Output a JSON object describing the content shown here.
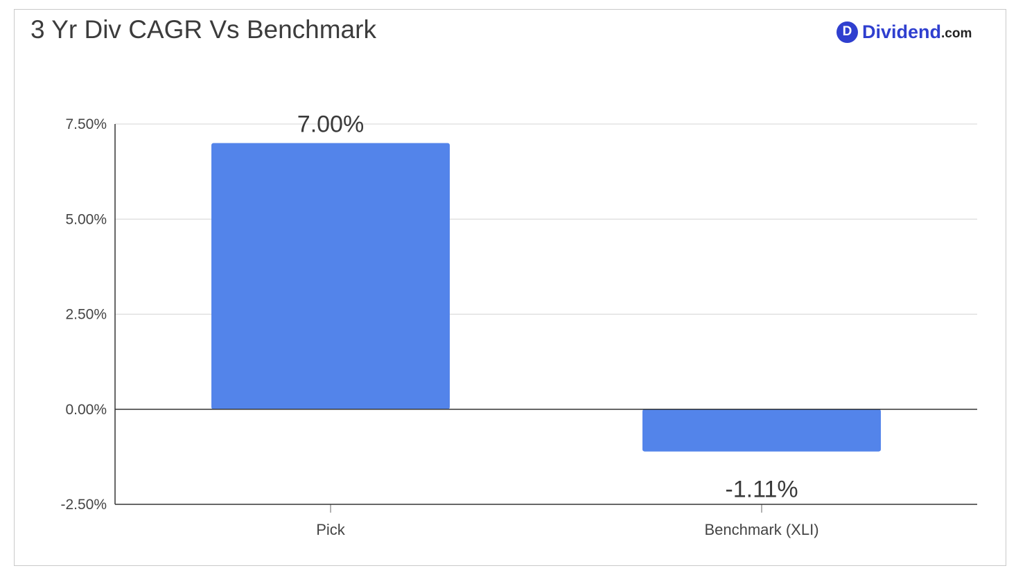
{
  "brand": {
    "name": "Dividend",
    "tld": ".com",
    "badge_letter": "D",
    "color": "#2f3fcf"
  },
  "chart_data": {
    "type": "bar",
    "title": "3 Yr Div CAGR Vs Benchmark",
    "categories": [
      "Pick",
      "Benchmark (XLI)"
    ],
    "values": [
      7.0,
      -1.11
    ],
    "data_labels": [
      "7.00%",
      "-1.11%"
    ],
    "xlabel": "",
    "ylabel": "",
    "ylim": [
      -2.5,
      7.5
    ],
    "yticks": [
      7.5,
      5.0,
      2.5,
      0.0,
      -2.5
    ],
    "ytick_labels": [
      "7.50%",
      "5.00%",
      "2.50%",
      "0.00%",
      "-2.50%"
    ],
    "grid": true,
    "legend": "none",
    "bar_color": "#5384ea"
  }
}
